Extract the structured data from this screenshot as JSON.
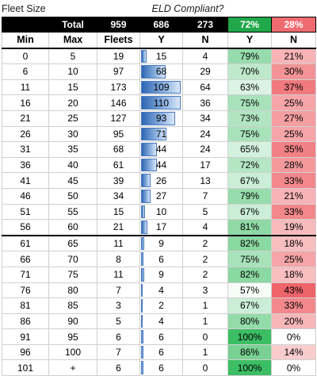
{
  "captions": {
    "fleet_size": "Fleet Size",
    "eld_compliant": "ELD Compliant?"
  },
  "total": {
    "label": "Total",
    "fleets": "959",
    "y": "686",
    "n": "273",
    "pct_y": "72%",
    "pct_n": "28%"
  },
  "headers": {
    "min": "Min",
    "max": "Max",
    "fleets": "Fleets",
    "y": "Y",
    "n": "N",
    "pct_y": "Y",
    "pct_n": "N"
  },
  "colors": {
    "green_strong": "#21a84a",
    "red_strong": "#ee6b70",
    "bar_blue": "#2d66b3"
  },
  "rows": [
    {
      "min": "0",
      "max": "5",
      "fleets": "19",
      "y": "15",
      "n": "4",
      "pct_y": "79%",
      "pct_n": "21%"
    },
    {
      "min": "6",
      "max": "10",
      "fleets": "97",
      "y": "68",
      "n": "29",
      "pct_y": "70%",
      "pct_n": "30%"
    },
    {
      "min": "11",
      "max": "15",
      "fleets": "173",
      "y": "109",
      "n": "64",
      "pct_y": "63%",
      "pct_n": "37%"
    },
    {
      "min": "16",
      "max": "20",
      "fleets": "146",
      "y": "110",
      "n": "36",
      "pct_y": "75%",
      "pct_n": "25%"
    },
    {
      "min": "21",
      "max": "25",
      "fleets": "127",
      "y": "93",
      "n": "34",
      "pct_y": "73%",
      "pct_n": "27%"
    },
    {
      "min": "26",
      "max": "30",
      "fleets": "95",
      "y": "71",
      "n": "24",
      "pct_y": "75%",
      "pct_n": "25%"
    },
    {
      "min": "31",
      "max": "35",
      "fleets": "68",
      "y": "44",
      "n": "24",
      "pct_y": "65%",
      "pct_n": "35%"
    },
    {
      "min": "36",
      "max": "40",
      "fleets": "61",
      "y": "44",
      "n": "17",
      "pct_y": "72%",
      "pct_n": "28%"
    },
    {
      "min": "41",
      "max": "45",
      "fleets": "39",
      "y": "26",
      "n": "13",
      "pct_y": "67%",
      "pct_n": "33%"
    },
    {
      "min": "46",
      "max": "50",
      "fleets": "34",
      "y": "27",
      "n": "7",
      "pct_y": "79%",
      "pct_n": "21%"
    },
    {
      "min": "51",
      "max": "55",
      "fleets": "15",
      "y": "10",
      "n": "5",
      "pct_y": "67%",
      "pct_n": "33%"
    },
    {
      "min": "56",
      "max": "60",
      "fleets": "21",
      "y": "17",
      "n": "4",
      "pct_y": "81%",
      "pct_n": "19%"
    },
    {
      "min": "61",
      "max": "65",
      "fleets": "11",
      "y": "9",
      "n": "2",
      "pct_y": "82%",
      "pct_n": "18%"
    },
    {
      "min": "66",
      "max": "70",
      "fleets": "8",
      "y": "6",
      "n": "2",
      "pct_y": "75%",
      "pct_n": "25%"
    },
    {
      "min": "71",
      "max": "75",
      "fleets": "11",
      "y": "9",
      "n": "2",
      "pct_y": "82%",
      "pct_n": "18%"
    },
    {
      "min": "76",
      "max": "80",
      "fleets": "7",
      "y": "4",
      "n": "3",
      "pct_y": "57%",
      "pct_n": "43%"
    },
    {
      "min": "81",
      "max": "85",
      "fleets": "3",
      "y": "2",
      "n": "1",
      "pct_y": "67%",
      "pct_n": "33%"
    },
    {
      "min": "86",
      "max": "90",
      "fleets": "5",
      "y": "4",
      "n": "1",
      "pct_y": "80%",
      "pct_n": "20%"
    },
    {
      "min": "91",
      "max": "95",
      "fleets": "6",
      "y": "6",
      "n": "0",
      "pct_y": "100%",
      "pct_n": "0%"
    },
    {
      "min": "96",
      "max": "100",
      "fleets": "7",
      "y": "6",
      "n": "1",
      "pct_y": "86%",
      "pct_n": "14%"
    },
    {
      "min": "101",
      "max": "+",
      "fleets": "6",
      "y": "6",
      "n": "0",
      "pct_y": "100%",
      "pct_n": "0%"
    }
  ]
}
